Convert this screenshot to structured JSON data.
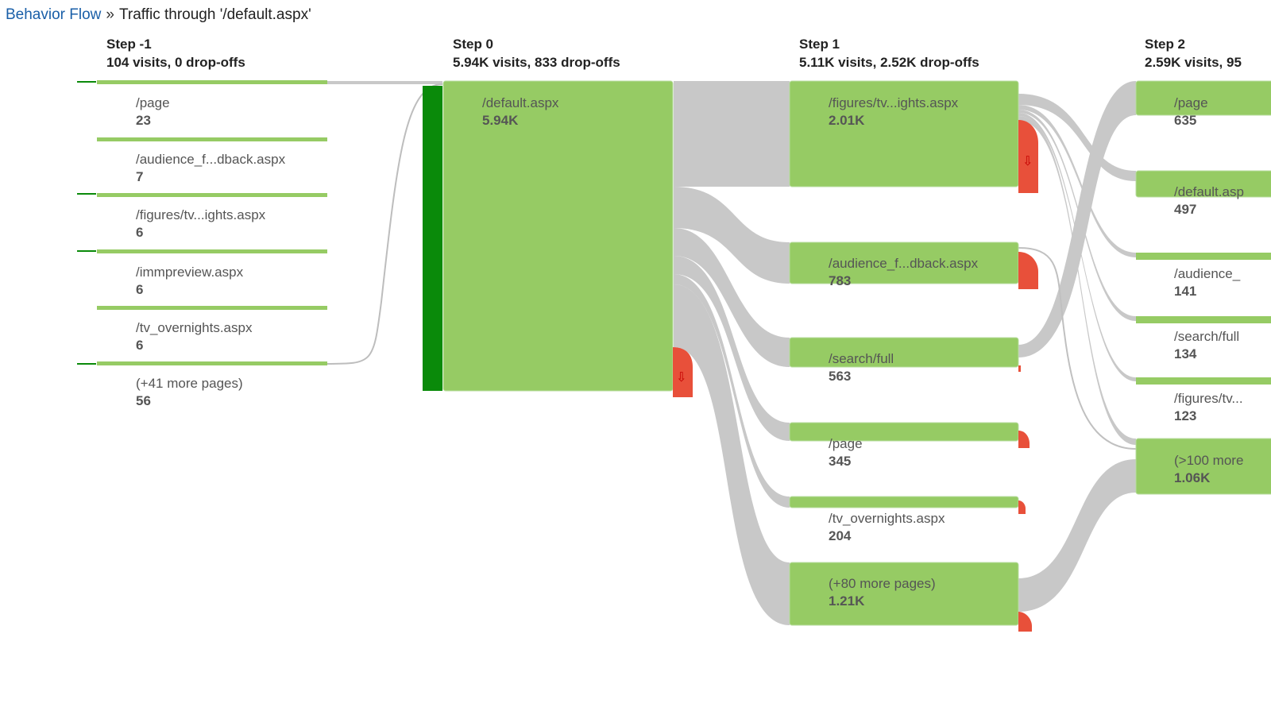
{
  "breadcrumb": {
    "link": "Behavior Flow",
    "separator": "»",
    "current": "Traffic through '/default.aspx'"
  },
  "colors": {
    "node": "#96cb64",
    "node_border": "#b8dca0",
    "starting_bar": "#0a8a0a",
    "flow": "#c8c8c8",
    "dropoff": "#e8503a",
    "link": "#1a5fa8"
  },
  "steps": [
    {
      "title": "Step -1",
      "summary": "104 visits, 0 drop-offs"
    },
    {
      "title": "Step 0",
      "summary": "5.94K visits, 833 drop-offs"
    },
    {
      "title": "Step 1",
      "summary": "5.11K visits, 2.52K drop-offs"
    },
    {
      "title": "Step 2",
      "summary": "2.59K visits, 95"
    }
  ],
  "step_minus1_nodes": [
    {
      "name": "/page",
      "value": "23"
    },
    {
      "name": "/audience_f...dback.aspx",
      "value": "7"
    },
    {
      "name": "/figures/tv...ights.aspx",
      "value": "6"
    },
    {
      "name": "/immpreview.aspx",
      "value": "6"
    },
    {
      "name": "/tv_overnights.aspx",
      "value": "6"
    },
    {
      "name": "(+41 more pages)",
      "value": "56"
    }
  ],
  "step0_nodes": [
    {
      "name": "/default.aspx",
      "value": "5.94K"
    }
  ],
  "step1_nodes": [
    {
      "name": "/figures/tv...ights.aspx",
      "value": "2.01K"
    },
    {
      "name": "/audience_f...dback.aspx",
      "value": "783"
    },
    {
      "name": "/search/full",
      "value": "563"
    },
    {
      "name": "/page",
      "value": "345"
    },
    {
      "name": "/tv_overnights.aspx",
      "value": "204"
    },
    {
      "name": "(+80 more pages)",
      "value": "1.21K"
    }
  ],
  "step2_nodes": [
    {
      "name": "/page",
      "value": "635"
    },
    {
      "name": "/default.asp",
      "value": "497"
    },
    {
      "name": "/audience_",
      "value": "141"
    },
    {
      "name": "/search/full",
      "value": "134"
    },
    {
      "name": "/figures/tv...",
      "value": "123"
    },
    {
      "name": "(>100 more",
      "value": "1.06K"
    }
  ],
  "icons": {
    "dropoff_arrow": "down-arrow-icon"
  },
  "dropoff_glyph": "⇩"
}
